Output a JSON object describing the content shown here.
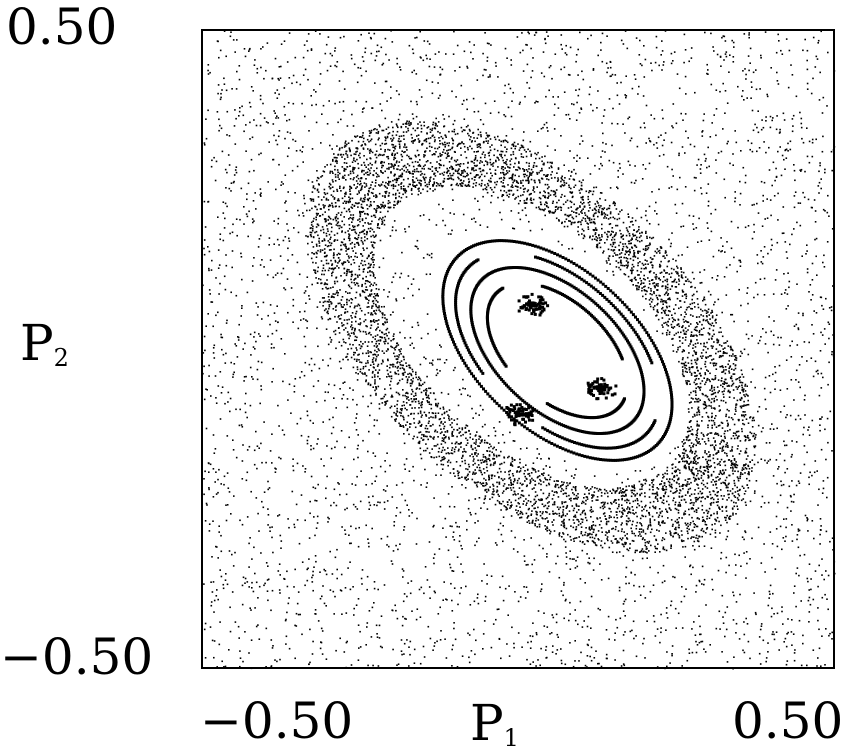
{
  "chart_data": {
    "type": "scatter",
    "title": "",
    "xlabel": {
      "main": "P",
      "sub": "1"
    },
    "ylabel": {
      "main": "P",
      "sub": "2"
    },
    "xlim": [
      -0.5,
      0.5
    ],
    "ylim": [
      -0.5,
      0.5
    ],
    "x_ticks": [
      "−0.50",
      "0.50"
    ],
    "y_ticks": [
      "−0.50",
      "0.50"
    ],
    "grid": false,
    "legend": "none",
    "frame": true,
    "marker_color": "#000000",
    "description_of_data": [
      {
        "region": "background chaotic sea",
        "x_range": [
          -0.5,
          0.5
        ],
        "y_range": [
          -0.5,
          0.5
        ],
        "density": "sparse"
      },
      {
        "region": "dense chaotic ring",
        "center": [
          0.02,
          0.02
        ],
        "semi_axes": [
          0.38,
          0.22
        ],
        "tilt_deg": -42
      },
      {
        "region": "regular island interior",
        "center": [
          0.06,
          0.0
        ],
        "semi_axes": [
          0.24,
          0.14
        ],
        "tilt_deg": -42
      }
    ]
  }
}
